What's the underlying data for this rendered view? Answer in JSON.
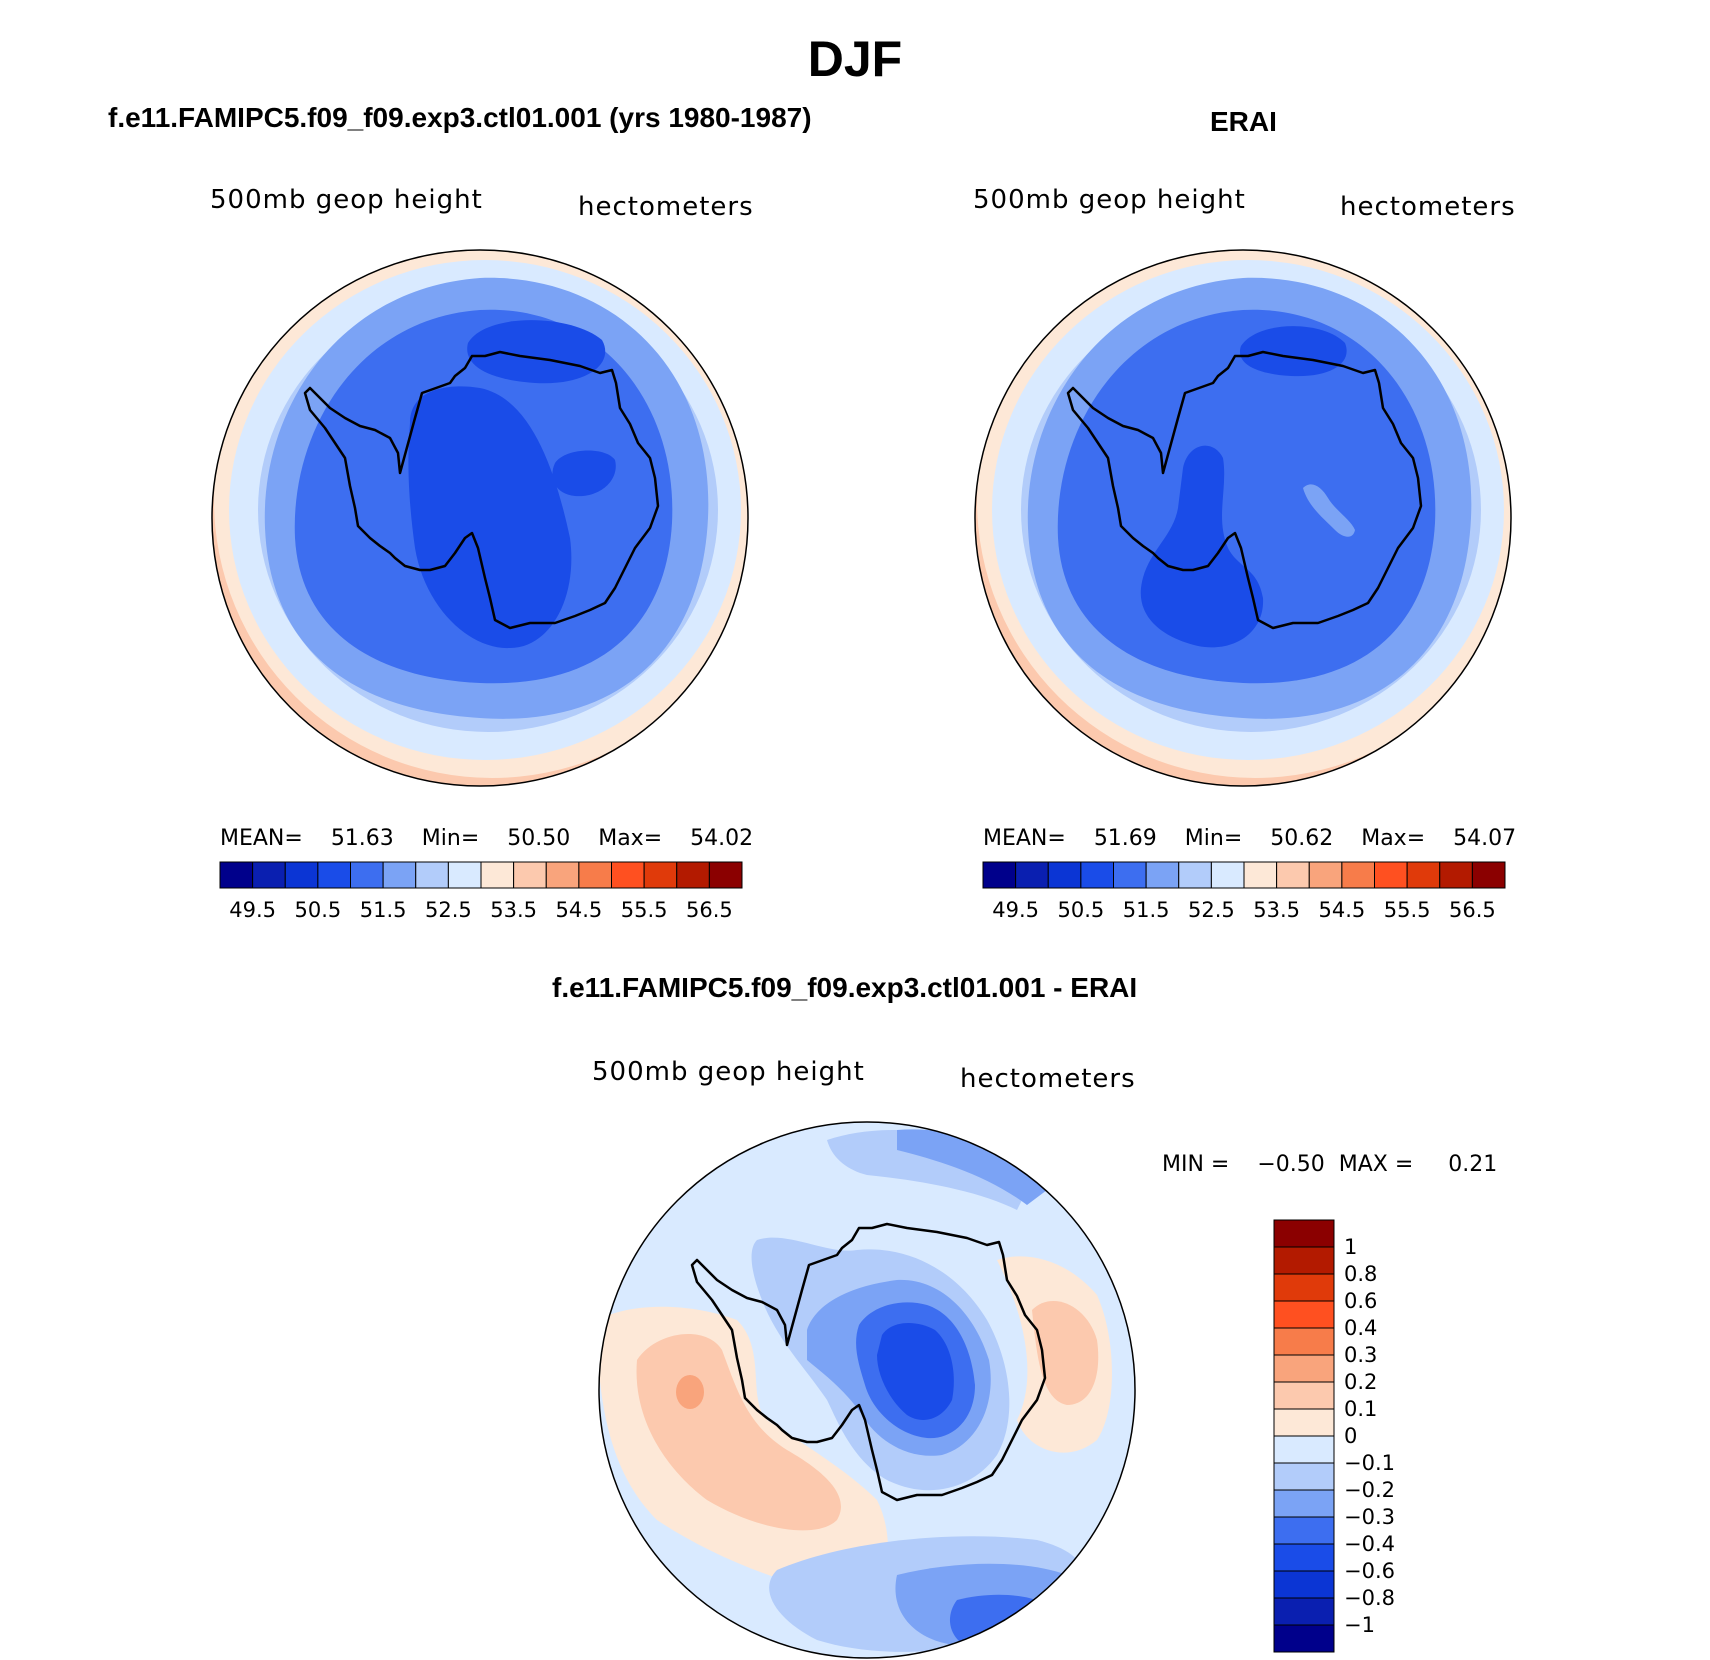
{
  "figure": {
    "title": "DJF"
  },
  "panels": [
    {
      "title": "f.e11.FAMIPC5.f09_f09.exp3.ctl01.001 (yrs 1980-1987)",
      "variable": "500mb geop height",
      "units": "hectometers",
      "stats": {
        "mean_label": "MEAN=",
        "mean": "51.63",
        "min_label": "Min=",
        "min": "50.50",
        "max_label": "Max=",
        "max": "54.02"
      }
    },
    {
      "title": "ERAI",
      "variable": "500mb geop height",
      "units": "hectometers",
      "stats": {
        "mean_label": "MEAN=",
        "mean": "51.69",
        "min_label": "Min=",
        "min": "50.62",
        "max_label": "Max=",
        "max": "54.07"
      }
    },
    {
      "title": "f.e11.FAMIPC5.f09_f09.exp3.ctl01.001 - ERAI",
      "variable": "500mb geop height",
      "units": "hectometers",
      "stats": {
        "min_label": "MIN =",
        "min": "−0.50",
        "max_label": "MAX =",
        "max": "0.21"
      }
    }
  ],
  "colorbar_abs": {
    "colors": [
      "#00008b",
      "#0a1fb0",
      "#0b35d4",
      "#1a4ce8",
      "#3d6ef0",
      "#7ba3f5",
      "#b2ccfa",
      "#d9eaff",
      "#fde8d7",
      "#fcc9ae",
      "#f9a47c",
      "#f77c4a",
      "#ff5020",
      "#e03a0a",
      "#b31a00",
      "#8b0000"
    ],
    "tick_labels": [
      "49.5",
      "50.5",
      "51.5",
      "52.5",
      "53.5",
      "54.5",
      "55.5",
      "56.5"
    ],
    "tick_values": [
      49.5,
      50.5,
      51.5,
      52.5,
      53.5,
      54.5,
      55.5,
      56.5
    ]
  },
  "colorbar_diff": {
    "colors_top_to_bottom": [
      "#8b0000",
      "#b31a00",
      "#e03a0a",
      "#ff5020",
      "#f77c4a",
      "#f9a47c",
      "#fcc9ae",
      "#fde8d7",
      "#d9eaff",
      "#b2ccfa",
      "#7ba3f5",
      "#3d6ef0",
      "#1a4ce8",
      "#0b35d4",
      "#0a1fb0",
      "#00008b"
    ],
    "tick_labels": [
      "1",
      "0.8",
      "0.6",
      "0.4",
      "0.3",
      "0.2",
      "0.1",
      "0",
      "−0.1",
      "−0.2",
      "−0.3",
      "−0.4",
      "−0.6",
      "−0.8",
      "−1"
    ]
  },
  "map_colors": {
    "c_blue5": "#3d6ef0",
    "c_blue4": "#7ba3f5",
    "c_blue3": "#b2ccfa",
    "c_blue2": "#d9eaff",
    "c_blue6": "#1a4ce8",
    "c_blue7": "#0b35d4",
    "c_peach1": "#fde8d7",
    "c_peach2": "#fcc9ae",
    "c_orange3": "#f9a47c"
  }
}
